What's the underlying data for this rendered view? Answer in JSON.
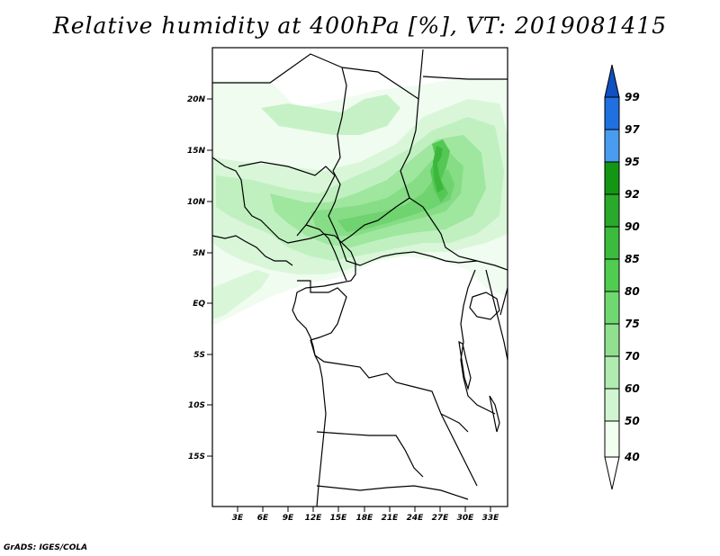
{
  "title": "Relative humidity at 400hPa [%], VT: 2019081415",
  "credit": "GrADS: IGES/COLA",
  "map": {
    "lon_range": [
      0,
      35
    ],
    "lat_range": [
      -20,
      25
    ],
    "lat_ticks": [
      "20N",
      "15N",
      "10N",
      "5N",
      "EQ",
      "5S",
      "10S",
      "15S"
    ],
    "lon_ticks": [
      "3E",
      "6E",
      "9E",
      "12E",
      "15E",
      "18E",
      "21E",
      "24E",
      "27E",
      "30E",
      "33E"
    ]
  },
  "colorbar": {
    "levels": [
      "40",
      "50",
      "60",
      "70",
      "75",
      "80",
      "85",
      "90",
      "92",
      "95",
      "97",
      "99"
    ],
    "colors": [
      "#f0fff0",
      "#d0f5d0",
      "#b0ecb0",
      "#90e090",
      "#70d870",
      "#50cc50",
      "#3cbc3c",
      "#2aaa2a",
      "#149614",
      "#4a9cf0",
      "#2070e0",
      "#1050c0"
    ]
  }
}
